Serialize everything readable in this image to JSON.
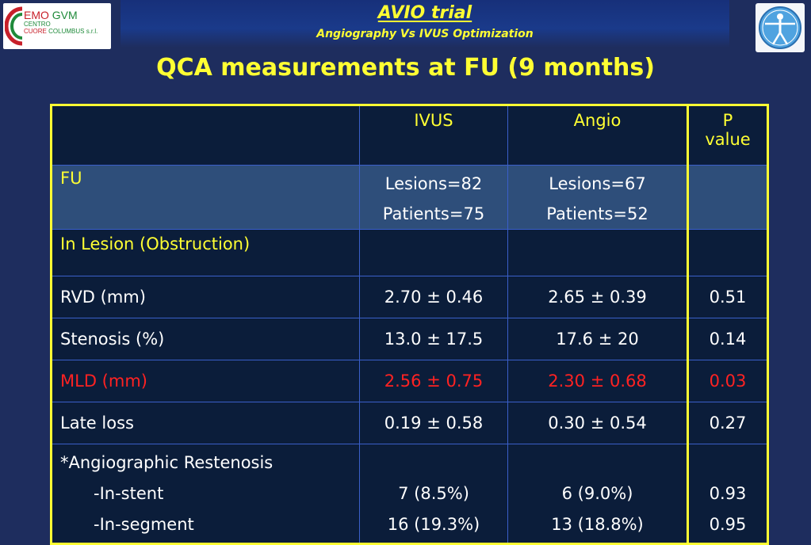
{
  "header": {
    "logo_left": {
      "line1_red": "EMO",
      "line1_green": "GVM",
      "line2": "CENTRO",
      "line3_red": "CUORE",
      "line3_green": "COLUMBUS s.r.l."
    },
    "logo_right": "vitruvian-man-icon",
    "title": "AVIO trial",
    "subtitle": "Angiography Vs IVUS Optimization"
  },
  "heading": "QCA measurements at FU (9 months)",
  "table": {
    "columns": {
      "ivus": "IVUS",
      "angio": "Angio",
      "p_line1": "P",
      "p_line2": "value"
    },
    "fu": {
      "label": "FU",
      "ivus_line1": "Lesions=82",
      "ivus_line2": "Patients=75",
      "angio_line1": "Lesions=67",
      "angio_line2": "Patients=52"
    },
    "section_label": "In Lesion (Obstruction)",
    "rows": [
      {
        "label": "RVD (mm)",
        "ivus": "2.70 ± 0.46",
        "angio": "2.65 ± 0.39",
        "p": "0.51"
      },
      {
        "label": "Stenosis (%)",
        "ivus": "13.0 ± 17.5",
        "angio": "17.6 ± 20",
        "p": "0.14"
      },
      {
        "label": "MLD (mm)",
        "ivus": "2.56 ± 0.75",
        "angio": "2.30 ± 0.68",
        "p": "0.03"
      },
      {
        "label": "Late loss",
        "ivus": "0.19 ± 0.58",
        "angio": "0.30 ± 0.54",
        "p": "0.27"
      }
    ],
    "restenosis": {
      "label": "*Angiographic Restenosis",
      "in_stent": {
        "label": "-In-stent",
        "ivus": "7 (8.5%)",
        "angio": "6 (9.0%)",
        "p": "0.93"
      },
      "in_segment": {
        "label": "-In-segment",
        "ivus": "16 (19.3%)",
        "angio": "13 (18.8%)",
        "p": "0.95"
      }
    }
  },
  "colors": {
    "background": "#1e2d5e",
    "accent": "#ffff33",
    "highlight": "#ff2222"
  }
}
